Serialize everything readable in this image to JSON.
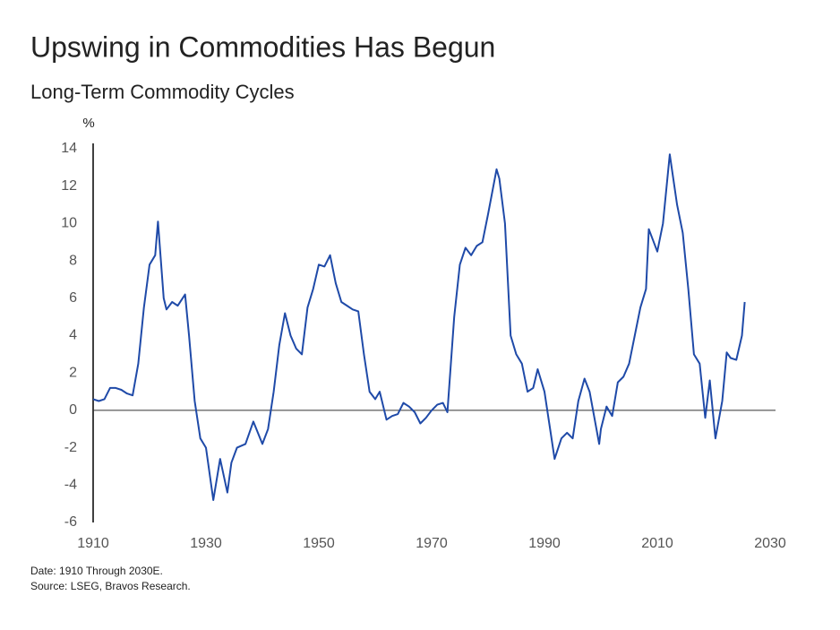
{
  "chart_data": {
    "type": "line",
    "title": "Upswing in Commodities Has Begun",
    "subtitle": "Long-Term Commodity Cycles",
    "y_label": "%",
    "notes": [
      "Date: 1910 Through 2030E.",
      "Source: LSEG, Bravos Research."
    ],
    "x": [
      1910,
      1911,
      1912,
      1913,
      1914,
      1915,
      1916,
      1917,
      1918,
      1919,
      1920,
      1921,
      1921.5,
      1922.5,
      1923,
      1924,
      1925,
      1926.3,
      1927,
      1928,
      1929,
      1930,
      1931.3,
      1932.5,
      1933.8,
      1934.5,
      1935.5,
      1937,
      1938.4,
      1940,
      1941,
      1942,
      1943,
      1944,
      1945,
      1946,
      1947,
      1948,
      1949,
      1950,
      1951,
      1952,
      1953,
      1954,
      1955,
      1956,
      1957,
      1958,
      1959,
      1960,
      1960.8,
      1962,
      1963,
      1964,
      1965,
      1966,
      1967,
      1968,
      1969,
      1970,
      1971,
      1972,
      1972.8,
      1974,
      1975,
      1976,
      1977,
      1978,
      1979,
      1980,
      1981.5,
      1982,
      1983,
      1984,
      1985,
      1986,
      1987,
      1988,
      1988.8,
      1990,
      1991,
      1991.8,
      1993,
      1994,
      1995,
      1996,
      1997.1,
      1998,
      1999.7,
      2000,
      2001,
      2002,
      2003,
      2004,
      2005,
      2006,
      2007,
      2008,
      2008.5,
      2010,
      2011,
      2012.2,
      2013.5,
      2014.5,
      2015.5,
      2016.5,
      2017.5,
      2018.5,
      2019.3,
      2020.3,
      2021.5,
      2022.3,
      2023,
      2024,
      2025,
      2025.5
    ],
    "series": [
      {
        "color": "#1f4aa8",
        "values": [
          0.6,
          0.5,
          0.6,
          1.2,
          1.2,
          1.1,
          0.9,
          0.8,
          2.5,
          5.5,
          7.8,
          8.3,
          10.1,
          6.0,
          5.4,
          5.8,
          5.6,
          6.2,
          4.0,
          0.5,
          -1.5,
          -2.0,
          -4.8,
          -2.6,
          -4.4,
          -2.8,
          -2.0,
          -1.8,
          -0.6,
          -1.8,
          -1.0,
          1.0,
          3.5,
          5.2,
          4.0,
          3.3,
          3.0,
          5.5,
          6.5,
          7.8,
          7.7,
          8.3,
          6.8,
          5.8,
          5.6,
          5.4,
          5.3,
          3.0,
          1.0,
          0.6,
          1.0,
          -0.5,
          -0.3,
          -0.2,
          0.4,
          0.2,
          -0.1,
          -0.7,
          -0.4,
          0.0,
          0.3,
          0.4,
          -0.1,
          5.0,
          7.8,
          8.7,
          8.3,
          8.8,
          9.0,
          10.5,
          12.9,
          12.4,
          10.0,
          4.0,
          3.0,
          2.5,
          1.0,
          1.2,
          2.2,
          1.0,
          -1.0,
          -2.6,
          -1.5,
          -1.2,
          -1.5,
          0.5,
          1.7,
          1.0,
          -1.8,
          -1.0,
          0.2,
          -0.3,
          1.5,
          1.8,
          2.5,
          4.0,
          5.5,
          6.5,
          9.7,
          8.5,
          10.0,
          13.7,
          11.0,
          9.5,
          6.5,
          3.0,
          2.5,
          -0.4,
          1.6,
          -1.5,
          0.5,
          3.1,
          2.8,
          2.7,
          4.0,
          5.8
        ]
      }
    ],
    "xlim": [
      1910,
      2030
    ],
    "xticks": [
      1910,
      1930,
      1950,
      1970,
      1990,
      2010,
      2030
    ],
    "ylim": [
      -6,
      14
    ],
    "yticks": [
      -6,
      -4,
      -2,
      0,
      2,
      4,
      6,
      8,
      10,
      12,
      14
    ]
  }
}
